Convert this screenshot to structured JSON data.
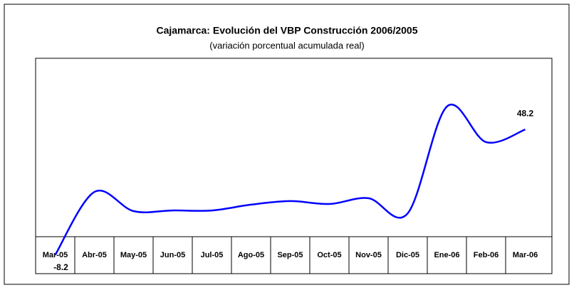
{
  "chart_data": {
    "type": "line",
    "title": "Cajamarca: Evolución del VBP Construcción 2006/2005",
    "subtitle": "(variación porcentual acumulada real)",
    "categories": [
      "Mar-05",
      "Abr-05",
      "May-05",
      "Jun-05",
      "Jul-05",
      "Ago-05",
      "Sep-05",
      "Oct-05",
      "Nov-05",
      "Dic-05",
      "Ene-06",
      "Feb-06",
      "Mar-06"
    ],
    "series": [
      {
        "name": "VBP Construcción",
        "color": "#0000ff",
        "values": [
          -8.2,
          20.1,
          11.5,
          11.8,
          11.8,
          14.4,
          16.0,
          14.7,
          17.3,
          10.5,
          58.5,
          42.5,
          48.2
        ]
      }
    ],
    "labeled_points": [
      0,
      12
    ]
  }
}
